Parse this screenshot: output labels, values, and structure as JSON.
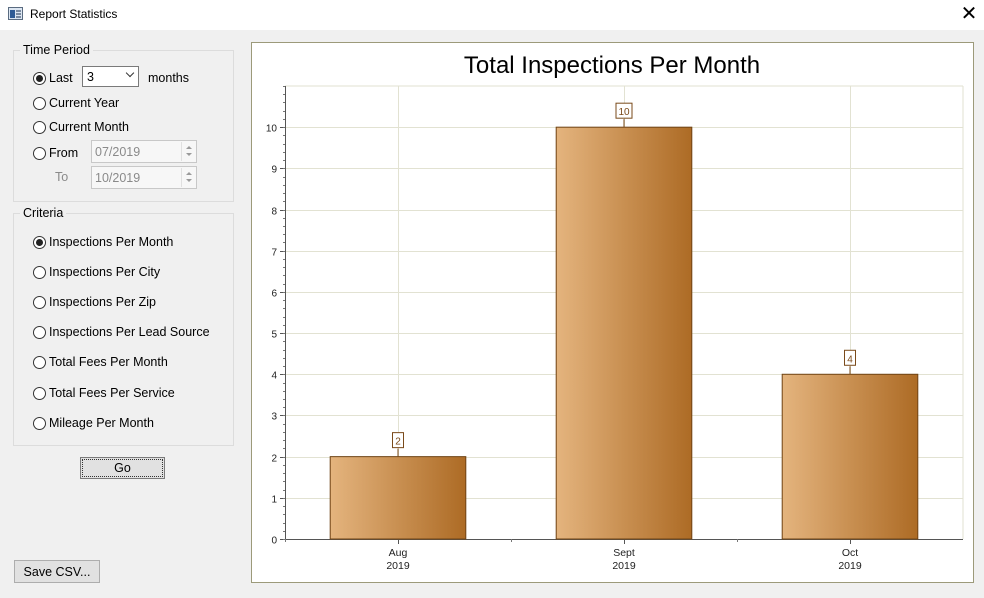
{
  "window": {
    "title": "Report Statistics",
    "close_glyph": "✕"
  },
  "time_period": {
    "legend": "Time Period",
    "last_label": "Last",
    "last_value": "3",
    "months_label": "months",
    "current_year_label": "Current Year",
    "current_month_label": "Current Month",
    "from_label": "From",
    "from_value": "07/2019",
    "to_label": "To",
    "to_value": "10/2019",
    "selected": "last"
  },
  "criteria": {
    "legend": "Criteria",
    "options": [
      "Inspections Per Month",
      "Inspections Per City",
      "Inspections Per Zip",
      "Inspections Per Lead Source",
      "Total Fees Per Month",
      "Total Fees Per Service",
      "Mileage Per Month"
    ],
    "selected_index": 0
  },
  "buttons": {
    "go": "Go",
    "save_csv": "Save CSV..."
  },
  "chart_data": {
    "type": "bar",
    "title": "Total Inspections Per Month",
    "categories": [
      [
        "Aug",
        "2019"
      ],
      [
        "Sept",
        "2019"
      ],
      [
        "Oct",
        "2019"
      ]
    ],
    "values": [
      2,
      10,
      4
    ],
    "data_labels": [
      "2",
      "10",
      "4"
    ],
    "y_ticks": [
      0,
      1,
      2,
      3,
      4,
      5,
      6,
      7,
      8,
      9,
      10
    ],
    "ylim": [
      0,
      11
    ],
    "grid": true,
    "legend": "none",
    "bar_gradient": [
      "#e4b47e",
      "#ad6b25"
    ],
    "bar_border": "#6e4314",
    "label_color": "#7a4a1a",
    "grid_color": "#e2e2d2"
  }
}
